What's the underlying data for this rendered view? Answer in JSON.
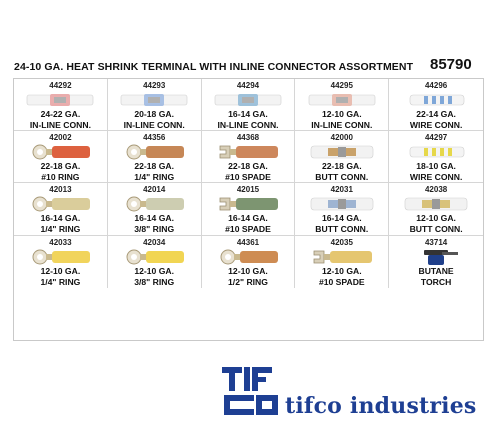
{
  "header": {
    "title": "24-10 GA. HEAT SHRINK TERMINAL WITH INLINE CONNECTOR ASSORTMENT",
    "part_number": "85790"
  },
  "items": [
    {
      "code": "44292",
      "line1": "24-22 GA.",
      "line2": "IN-LINE CONN.",
      "kind": "inline",
      "color": "#e8a0a0"
    },
    {
      "code": "44293",
      "line1": "20-18 GA.",
      "line2": "IN-LINE CONN.",
      "kind": "inline",
      "color": "#9ab6e0"
    },
    {
      "code": "44294",
      "line1": "16-14 GA.",
      "line2": "IN-LINE CONN.",
      "kind": "inline",
      "color": "#8fb8d6"
    },
    {
      "code": "44295",
      "line1": "12-10 GA.",
      "line2": "IN-LINE CONN.",
      "kind": "inline",
      "color": "#e6b4a6"
    },
    {
      "code": "44296",
      "line1": "22-14 GA.",
      "line2": "WIRE CONN.",
      "kind": "wire",
      "color": "#7fa7d8"
    },
    {
      "code": "42002",
      "line1": "22-18 GA.",
      "line2": "#10 RING",
      "kind": "ring",
      "color": "#d9502a"
    },
    {
      "code": "44356",
      "line1": "22-18 GA.",
      "line2": "1/4\" RING",
      "kind": "ring",
      "color": "#c07a44"
    },
    {
      "code": "44368",
      "line1": "22-18 GA.",
      "line2": "#10 SPADE",
      "kind": "spade",
      "color": "#c87a4a"
    },
    {
      "code": "42000",
      "line1": "22-18 GA.",
      "line2": "BUTT CONN.",
      "kind": "butt",
      "color": "#c9a26a"
    },
    {
      "code": "44297",
      "line1": "18-10 GA.",
      "line2": "WIRE CONN.",
      "kind": "wire",
      "color": "#e6d84a"
    },
    {
      "code": "42013",
      "line1": "16-14 GA.",
      "line2": "1/4\" RING",
      "kind": "ring",
      "color": "#d6c890"
    },
    {
      "code": "42014",
      "line1": "16-14 GA.",
      "line2": "3/8\" RING",
      "kind": "ring",
      "color": "#c8c8a8"
    },
    {
      "code": "42015",
      "line1": "16-14 GA.",
      "line2": "#10 SPADE",
      "kind": "spade",
      "color": "#6f8a62"
    },
    {
      "code": "42031",
      "line1": "16-14 GA.",
      "line2": "BUTT CONN.",
      "kind": "butt",
      "color": "#9eb4d2"
    },
    {
      "code": "42038",
      "line1": "12-10 GA.",
      "line2": "BUTT CONN.",
      "kind": "butt",
      "color": "#d8c27a"
    },
    {
      "code": "42033",
      "line1": "12-10 GA.",
      "line2": "1/4\" RING",
      "kind": "ring",
      "color": "#f0cf4a"
    },
    {
      "code": "42034",
      "line1": "12-10 GA.",
      "line2": "3/8\" RING",
      "kind": "ring",
      "color": "#f0d040"
    },
    {
      "code": "44361",
      "line1": "12-10 GA.",
      "line2": "1/2\" RING",
      "kind": "ring",
      "color": "#c98040"
    },
    {
      "code": "42035",
      "line1": "12-10 GA.",
      "line2": "#10 SPADE",
      "kind": "spade",
      "color": "#e2c060"
    },
    {
      "code": "43714",
      "line1": "BUTANE",
      "line2": "TORCH",
      "kind": "torch",
      "color": "#1f3f8a"
    }
  ],
  "footer": {
    "brand_name": "tifco industries",
    "logo_text": "TIFCO",
    "brand_color": "#1e3f93"
  }
}
